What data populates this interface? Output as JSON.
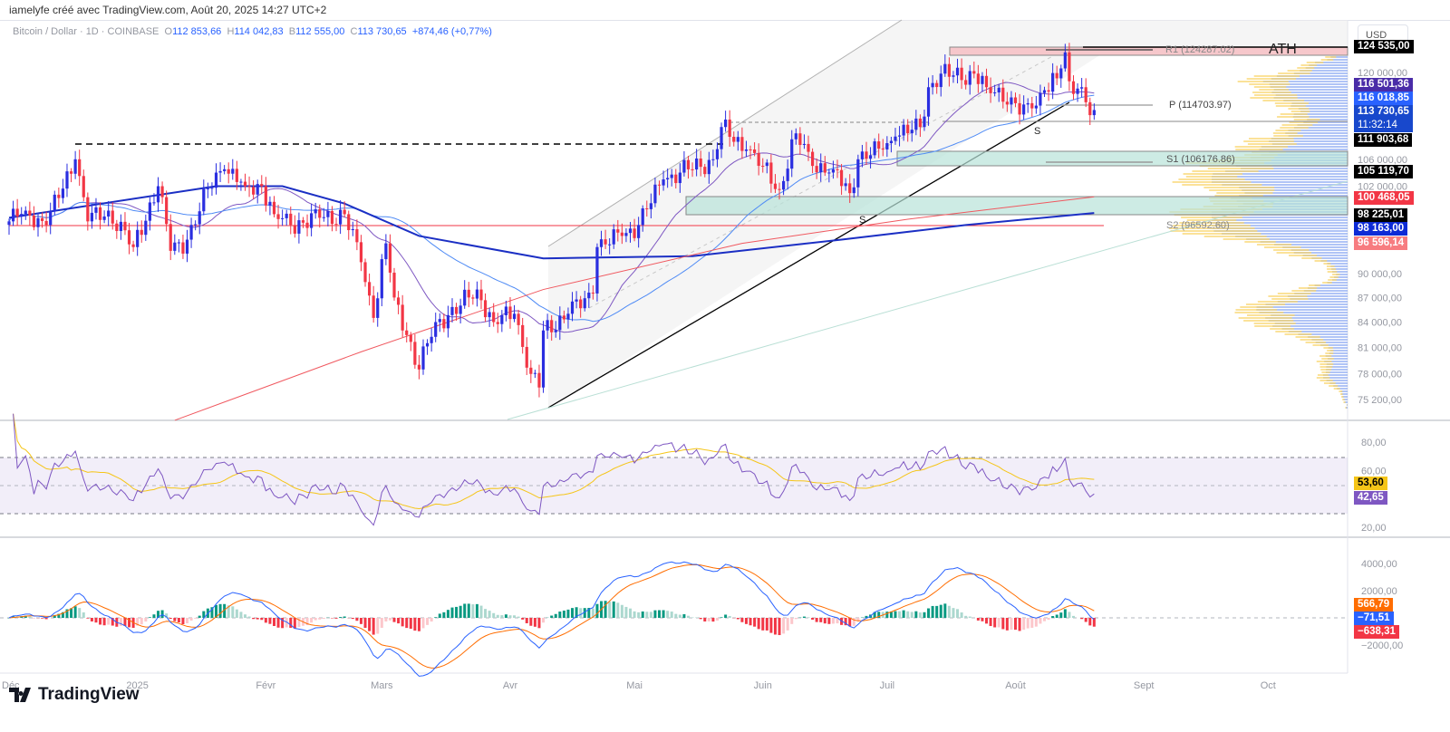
{
  "credit": "iamelyfe créé avec TradingView.com, Août 20, 2025 14:27 UTC+2",
  "legend": {
    "symbol": "Bitcoin / Dollar · 1D · COINBASE",
    "open_label": "O",
    "open": "112 853,66",
    "high_label": "H",
    "high": "114 042,83",
    "low_label": "B",
    "low": "112 555,00",
    "close_label": "C",
    "close": "113 730,65",
    "change": "+874,46 (+0,77%)"
  },
  "currency_button": "USD",
  "logo": "TradingView",
  "colors": {
    "up": "#2a2ee0",
    "down": "#f23645",
    "ma_fast": "#7e57c2",
    "ma_slow": "#4f8bf5",
    "anchored": "#1b2fc4",
    "ma_long": "#f0585f",
    "rsi": "#7e57c2",
    "rsi_ma": "#f5c518",
    "macd": "#2962ff",
    "signal": "#ff6d00"
  },
  "price_axis": {
    "scale": "log",
    "ticks": [
      "120 000,00",
      "106 000,00",
      "102 000,00",
      "90 000,00",
      "87 000,00",
      "84 000,00",
      "81 000,00",
      "78 000,00",
      "75 200,00"
    ]
  },
  "price_tags": [
    {
      "text": "124 535,00",
      "color": "#000000"
    },
    {
      "text": "116 501,36",
      "color": "#4a2ca8"
    },
    {
      "text": "116 018,85",
      "color": "#2962ff"
    },
    {
      "text": "113 730,65",
      "sub": "11:32:14",
      "color": "#1848cc"
    },
    {
      "text": "111 903,68",
      "color": "#000000"
    },
    {
      "text": "105 119,70",
      "color": "#000000"
    },
    {
      "text": "100 468,05",
      "color": "#f23645"
    },
    {
      "text": "98 225,01",
      "color": "#000000"
    },
    {
      "text": "98 163,00",
      "color": "#0d2bd6"
    },
    {
      "text": "96 596,14",
      "color": "#f77c80"
    }
  ],
  "annotations": {
    "ath": "ATH",
    "r1": "R1 (124287.02)",
    "pivot": "P (114703.97)",
    "s1": "S1 (106176.86)",
    "s2": "S2 (96592.60)",
    "support_mark": "S"
  },
  "rsi_axis": {
    "ticks": [
      "80,00",
      "60,00",
      "20,00"
    ],
    "tags": [
      {
        "text": "53,60",
        "color": "#f5c518",
        "fg": "#000"
      },
      {
        "text": "42,65",
        "color": "#7e57c2",
        "fg": "#fff"
      }
    ]
  },
  "macd_axis": {
    "ticks": [
      "4000,00",
      "2000,00",
      "−2000,00"
    ],
    "tags": [
      {
        "text": "566,79",
        "color": "#ff6d00"
      },
      {
        "text": "−71,51",
        "color": "#2962ff"
      },
      {
        "text": "−638,31",
        "color": "#f23645"
      }
    ]
  },
  "time_axis": [
    "Déc",
    "2025",
    "Févr",
    "Mars",
    "Avr",
    "Mai",
    "Juin",
    "Juil",
    "Août",
    "Sept",
    "Oct"
  ],
  "chart_data": {
    "type": "candlestick",
    "title": "Bitcoin / Dollar · 1D · COINBASE",
    "y_scale": "log",
    "ylim": [
      74000,
      126000
    ],
    "close_path": [
      [
        "2024-12-01",
        97000
      ],
      [
        "2024-12-05",
        98500
      ],
      [
        "2024-12-10",
        96500
      ],
      [
        "2024-12-17",
        106000
      ],
      [
        "2024-12-20",
        97000
      ],
      [
        "2024-12-25",
        98500
      ],
      [
        "2024-12-31",
        93500
      ],
      [
        "2025-01-06",
        102000
      ],
      [
        "2025-01-09",
        93000
      ],
      [
        "2025-01-13",
        94500
      ],
      [
        "2025-01-20",
        104000
      ],
      [
        "2025-01-22",
        104500
      ],
      [
        "2025-01-27",
        102000
      ],
      [
        "2025-01-31",
        102000
      ],
      [
        "2025-02-03",
        98000
      ],
      [
        "2025-02-07",
        96500
      ],
      [
        "2025-02-14",
        97500
      ],
      [
        "2025-02-20",
        98000
      ],
      [
        "2025-02-24",
        91500
      ],
      [
        "2025-02-27",
        84500
      ],
      [
        "2025-03-02",
        94000
      ],
      [
        "2025-03-04",
        87000
      ],
      [
        "2025-03-10",
        78500
      ],
      [
        "2025-03-14",
        84000
      ],
      [
        "2025-03-20",
        86000
      ],
      [
        "2025-03-24",
        88000
      ],
      [
        "2025-03-28",
        84000
      ],
      [
        "2025-04-02",
        85000
      ],
      [
        "2025-04-06",
        78000
      ],
      [
        "2025-04-08",
        76500
      ],
      [
        "2025-04-09",
        83000
      ],
      [
        "2025-04-15",
        85000
      ],
      [
        "2025-04-21",
        87500
      ],
      [
        "2025-04-22",
        93500
      ],
      [
        "2025-04-28",
        95000
      ],
      [
        "2025-05-02",
        96500
      ],
      [
        "2025-05-08",
        103000
      ],
      [
        "2025-05-12",
        104000
      ],
      [
        "2025-05-20",
        106000
      ],
      [
        "2025-05-22",
        111000
      ],
      [
        "2025-05-28",
        107500
      ],
      [
        "2025-06-01",
        105000
      ],
      [
        "2025-06-05",
        101500
      ],
      [
        "2025-06-09",
        110000
      ],
      [
        "2025-06-13",
        105000
      ],
      [
        "2025-06-18",
        104500
      ],
      [
        "2025-06-22",
        101000
      ],
      [
        "2025-06-24",
        106000
      ],
      [
        "2025-06-30",
        107500
      ],
      [
        "2025-07-03",
        109500
      ],
      [
        "2025-07-09",
        111000
      ],
      [
        "2025-07-11",
        117500
      ],
      [
        "2025-07-14",
        119800
      ],
      [
        "2025-07-17",
        119500
      ],
      [
        "2025-07-22",
        119800
      ],
      [
        "2025-07-25",
        117500
      ],
      [
        "2025-07-31",
        115800
      ],
      [
        "2025-08-02",
        113000
      ],
      [
        "2025-08-05",
        114000
      ],
      [
        "2025-08-08",
        117000
      ],
      [
        "2025-08-11",
        119000
      ],
      [
        "2025-08-13",
        123500
      ],
      [
        "2025-08-14",
        118500
      ],
      [
        "2025-08-17",
        117500
      ],
      [
        "2025-08-18",
        115000
      ],
      [
        "2025-08-19",
        112900
      ],
      [
        "2025-08-20",
        113730
      ]
    ],
    "anchored_line": [
      [
        "2024-12-01",
        97500
      ],
      [
        "2025-01-20",
        102000
      ],
      [
        "2025-02-05",
        102000
      ],
      [
        "2025-02-20",
        99500
      ],
      [
        "2025-03-10",
        95000
      ],
      [
        "2025-04-09",
        92000
      ],
      [
        "2025-05-15",
        92300
      ],
      [
        "2025-06-20",
        94500
      ],
      [
        "2025-07-20",
        96500
      ],
      [
        "2025-08-20",
        98163
      ]
    ],
    "long_ma": [
      [
        "2025-01-10",
        73000
      ],
      [
        "2025-02-24",
        80500
      ],
      [
        "2025-04-09",
        88000
      ],
      [
        "2025-05-27",
        94000
      ],
      [
        "2025-07-06",
        97300
      ],
      [
        "2025-08-20",
        100468
      ]
    ],
    "indicators": [
      "RSI 14",
      "MACD 12 26 9"
    ]
  }
}
